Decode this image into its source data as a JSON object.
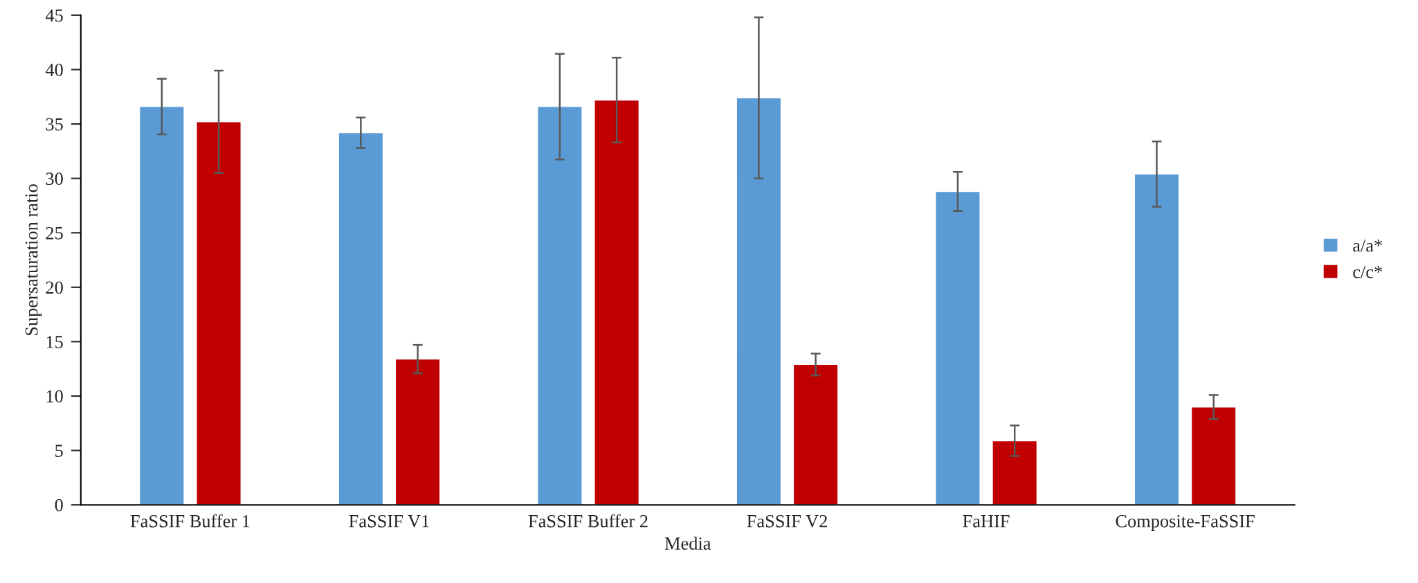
{
  "chart_data": {
    "type": "bar",
    "xlabel": "Media",
    "ylabel": "Supersaturation ratio",
    "categories": [
      "FaSSIF Buffer 1",
      "FaSSIF V1",
      "FaSSIF Buffer 2",
      "FaSSIF V2",
      "FaHIF",
      "Composite-FaSSIF"
    ],
    "series": [
      {
        "name": "a/a*",
        "color": "#5b9bd5",
        "values": [
          36.6,
          34.2,
          36.6,
          37.4,
          28.8,
          30.4
        ],
        "errors": [
          2.55,
          1.4,
          4.85,
          7.4,
          1.8,
          3.0
        ]
      },
      {
        "name": "c/c*",
        "color": "#c00000",
        "values": [
          35.2,
          13.4,
          37.2,
          12.9,
          5.9,
          9.0
        ],
        "errors": [
          4.7,
          1.3,
          3.9,
          1.0,
          1.4,
          1.1
        ]
      }
    ],
    "ylim": [
      0,
      45
    ],
    "yticks": [
      0,
      5,
      10,
      15,
      20,
      25,
      30,
      35,
      40,
      45
    ],
    "grid": false,
    "legend": "right"
  }
}
